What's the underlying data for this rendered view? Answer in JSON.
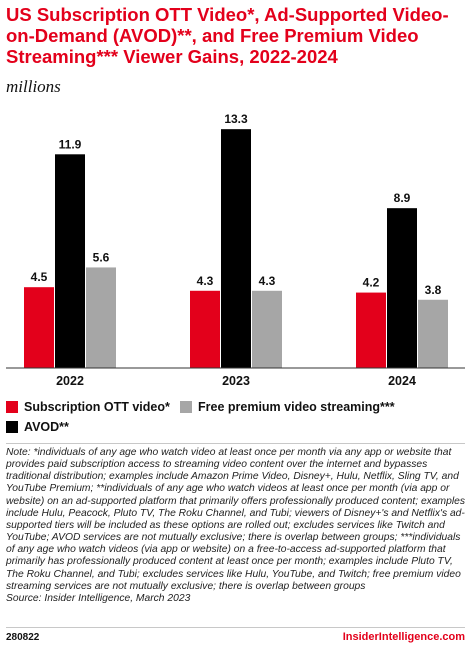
{
  "header": {
    "title": "US Subscription OTT Video*, Ad-Supported Video-on-Demand (AVOD)**, and Free Premium Video Streaming*** Viewer Gains, 2022-2024",
    "subtitle": "millions"
  },
  "colors": {
    "accent": "#e3001b",
    "subscription": "#e3001b",
    "avod": "#000000",
    "free": "#a6a6a6"
  },
  "chart_data": {
    "type": "bar",
    "categories": [
      "2022",
      "2023",
      "2024"
    ],
    "series": [
      {
        "name": "Subscription OTT video*",
        "values": [
          4.5,
          4.3,
          4.2
        ],
        "color": "#e3001b"
      },
      {
        "name": "AVOD**",
        "values": [
          11.9,
          13.3,
          8.9
        ],
        "color": "#000000"
      },
      {
        "name": "Free premium video streaming***",
        "values": [
          5.6,
          4.3,
          3.8
        ],
        "color": "#a6a6a6"
      }
    ],
    "data_labels": [
      [
        "4.5",
        "11.9",
        "5.6"
      ],
      [
        "4.3",
        "13.3",
        "4.3"
      ],
      [
        "4.2",
        "8.9",
        "3.8"
      ]
    ],
    "ylim": [
      0,
      14.2
    ],
    "grid": false,
    "legend_position": "bottom-left"
  },
  "legend": {
    "subscription": "Subscription OTT video*",
    "free": "Free premium video streaming***",
    "avod": "AVOD**"
  },
  "note": "Note: *individuals of any age who watch video at least once per month via any app or website that provides paid subscription access to streaming video content over the internet and bypasses traditional distribution; examples include Amazon Prime Video, Disney+, Hulu, Netflix, Sling TV, and YouTube Premium; **individuals of any age who watch videos at least once per month (via app or website) on an ad-supported platform that primarily offers professionally produced content; examples include Hulu, Peacock, Pluto TV, The Roku Channel, and Tubi; viewers of Disney+'s and Netflix's ad-supported tiers will be included as these options are rolled out; excludes services like Twitch and YouTube; AVOD services are not mutually exclusive; there is overlap between groups; ***individuals of any age who watch videos (via app or website) on a free-to-access ad-supported platform that primarily has professionally produced content at least once per month; examples include Pluto TV, The Roku Channel, and Tubi; excludes services like Hulu, YouTube, and Twitch; free premium video streaming services are not mutually exclusive; there is overlap between groups",
  "source": "Source: Insider Intelligence, March 2023",
  "footer": {
    "id": "280822",
    "brand": "InsiderIntelligence.com"
  }
}
